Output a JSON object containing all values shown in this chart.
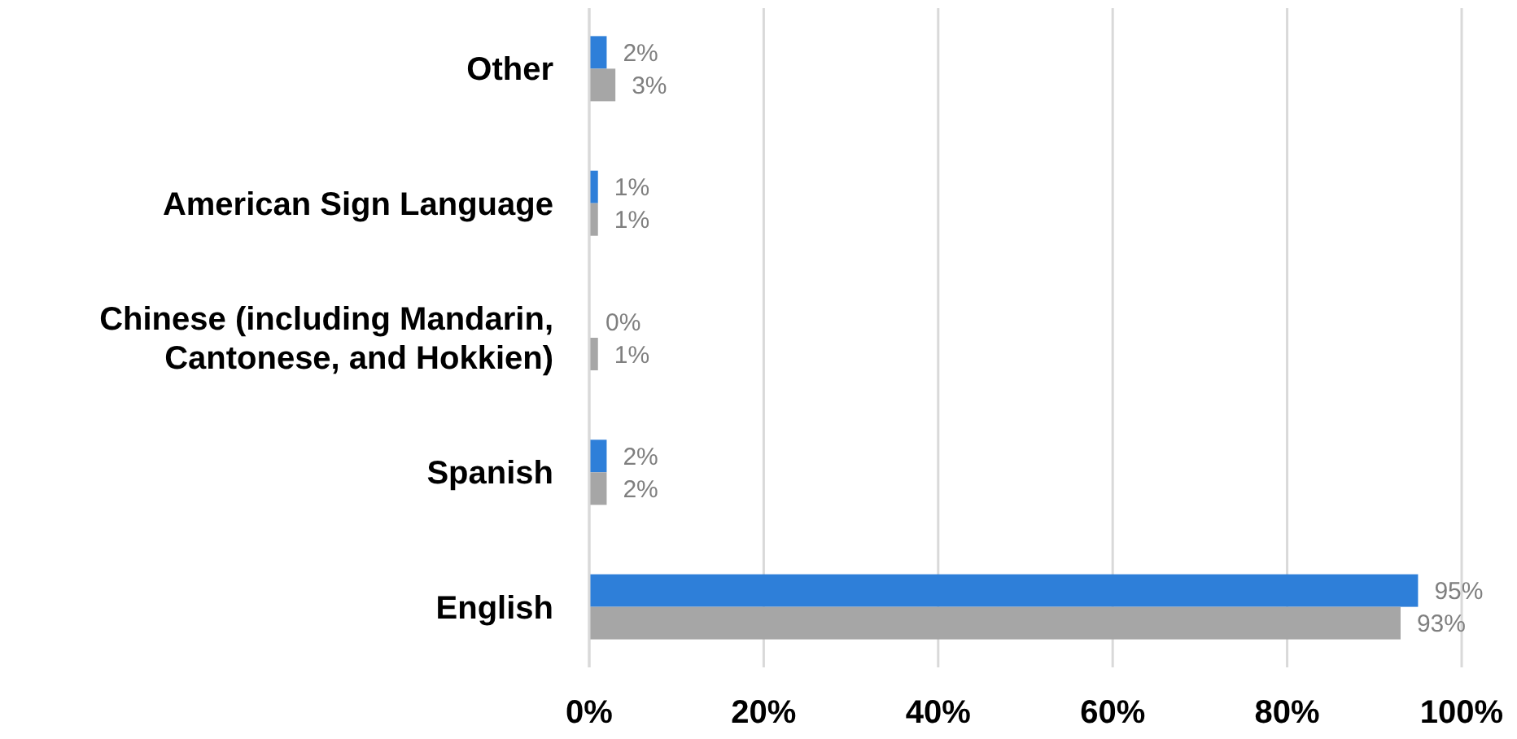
{
  "chart_data": {
    "type": "bar",
    "orientation": "horizontal",
    "categories": [
      "Other",
      "American Sign Language",
      "Chinese (including Mandarin, Cantonese, and Hokkien)",
      "Spanish",
      "English"
    ],
    "series": [
      {
        "color": "#2e7fd9",
        "values": [
          2,
          1,
          0,
          2,
          95
        ],
        "value_labels": [
          "2%",
          "1%",
          "0%",
          "2%",
          "95%"
        ]
      },
      {
        "color": "#a6a6a6",
        "values": [
          3,
          1,
          1,
          2,
          93
        ],
        "value_labels": [
          "3%",
          "1%",
          "1%",
          "2%",
          "93%"
        ]
      }
    ],
    "xlim": [
      0,
      100
    ],
    "xticks": [
      {
        "value": 0,
        "label": "0%"
      },
      {
        "value": 20,
        "label": "20%"
      },
      {
        "value": 40,
        "label": "40%"
      },
      {
        "value": 60,
        "label": "60%"
      },
      {
        "value": 80,
        "label": "80%"
      },
      {
        "value": 100,
        "label": "100%"
      }
    ],
    "grid": "x"
  }
}
